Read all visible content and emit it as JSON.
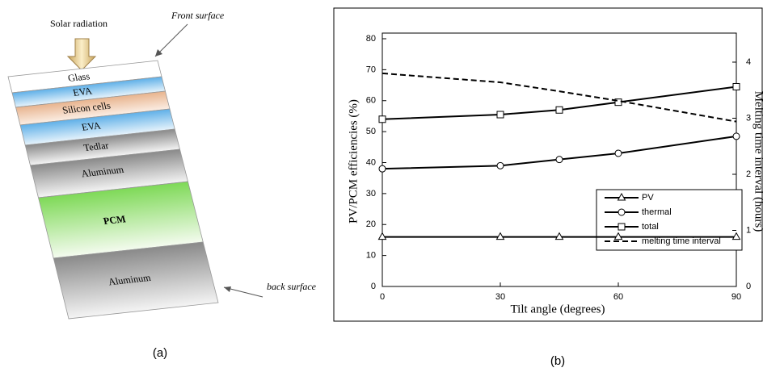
{
  "diagram": {
    "solar_label": "Solar radiation",
    "front_label": "Front surface",
    "back_label": "back surface",
    "layers": [
      "Glass",
      "EVA",
      "Silicon cells",
      "EVA",
      "Tedlar",
      "Aluminum",
      "PCM",
      "Aluminum"
    ],
    "caption": "(a)"
  },
  "chart_data": {
    "type": "line",
    "caption": "(b)",
    "xlabel": "Tilt angle (degrees)",
    "ylabel": "PV/PCM efficiencies (%)",
    "y2label": "Melting time interval (hours)",
    "x": [
      0,
      30,
      45,
      60,
      90
    ],
    "xlim": [
      0,
      90
    ],
    "xticks": [
      0,
      30,
      60,
      90
    ],
    "ylim": [
      0,
      80
    ],
    "yticks": [
      0,
      10,
      20,
      30,
      40,
      50,
      60,
      70,
      80
    ],
    "y2lim": [
      0,
      4
    ],
    "y2ticks": [
      0,
      1,
      2,
      3,
      4
    ],
    "series": [
      {
        "name": "PV",
        "color": "#000000",
        "marker": "triangle",
        "values": [
          16,
          16,
          16,
          16,
          16
        ]
      },
      {
        "name": "thermal",
        "color": "#000000",
        "marker": "circle",
        "values": [
          38,
          39,
          41,
          43,
          48.5
        ]
      },
      {
        "name": "total",
        "color": "#000000",
        "marker": "square",
        "values": [
          54,
          55.5,
          57,
          59.5,
          64.5
        ]
      },
      {
        "name": "melting time interval",
        "color": "#000000",
        "dashed": true,
        "axis": "y2",
        "values": [
          3.8,
          3.64,
          3.48,
          3.31,
          2.94
        ]
      }
    ]
  }
}
